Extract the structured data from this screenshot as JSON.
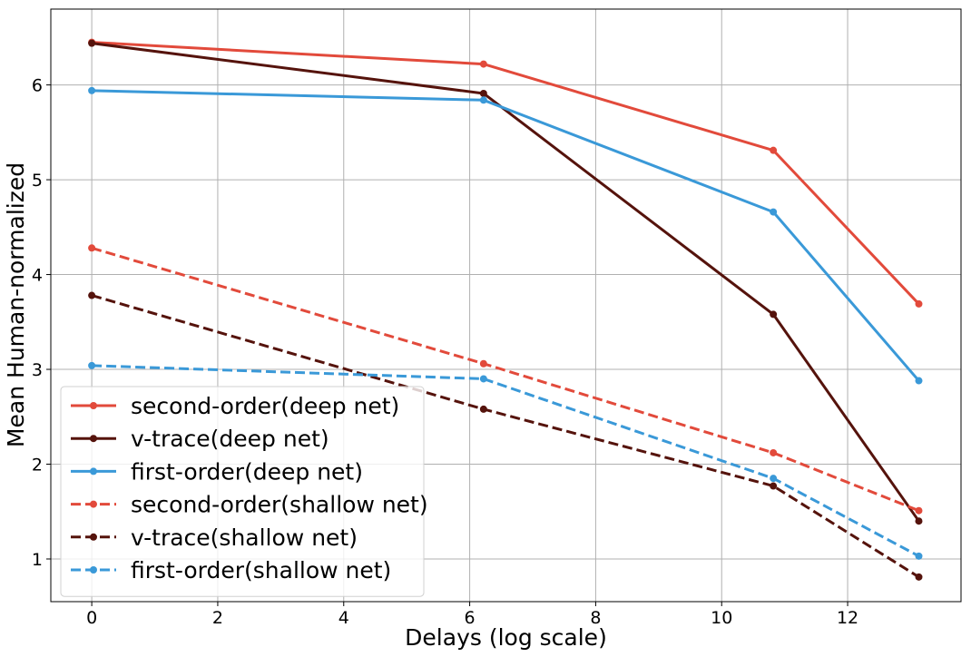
{
  "chart_data": {
    "type": "line",
    "xlabel": "Delays (log scale)",
    "ylabel": "Mean Human-normalized",
    "xlim": [
      -0.65,
      13.8
    ],
    "ylim": [
      0.55,
      6.8
    ],
    "xticks": [
      0,
      2,
      4,
      6,
      8,
      10,
      12
    ],
    "yticks": [
      1,
      2,
      3,
      4,
      5,
      6
    ],
    "grid": true,
    "legend_position": "lower-left",
    "x": [
      0,
      6.22,
      10.82,
      13.13
    ],
    "series": [
      {
        "name": "second-order(deep net)",
        "values": [
          6.45,
          6.22,
          5.31,
          3.69
        ],
        "color": "#e24a3b",
        "dash": "solid"
      },
      {
        "name": "v-trace(deep net)",
        "values": [
          6.44,
          5.91,
          3.58,
          1.4
        ],
        "color": "#55130c",
        "dash": "solid"
      },
      {
        "name": "first-order(deep net)",
        "values": [
          5.94,
          5.84,
          4.66,
          2.88
        ],
        "color": "#3a99d8",
        "dash": "solid"
      },
      {
        "name": "second-order(shallow net)",
        "values": [
          4.28,
          3.06,
          2.12,
          1.51
        ],
        "color": "#e24a3b",
        "dash": "dashed"
      },
      {
        "name": "v-trace(shallow net)",
        "values": [
          3.78,
          2.58,
          1.77,
          0.81
        ],
        "color": "#55130c",
        "dash": "dashed"
      },
      {
        "name": "first-order(shallow net)",
        "values": [
          3.04,
          2.9,
          1.85,
          1.03
        ],
        "color": "#3a99d8",
        "dash": "dashed"
      }
    ]
  }
}
